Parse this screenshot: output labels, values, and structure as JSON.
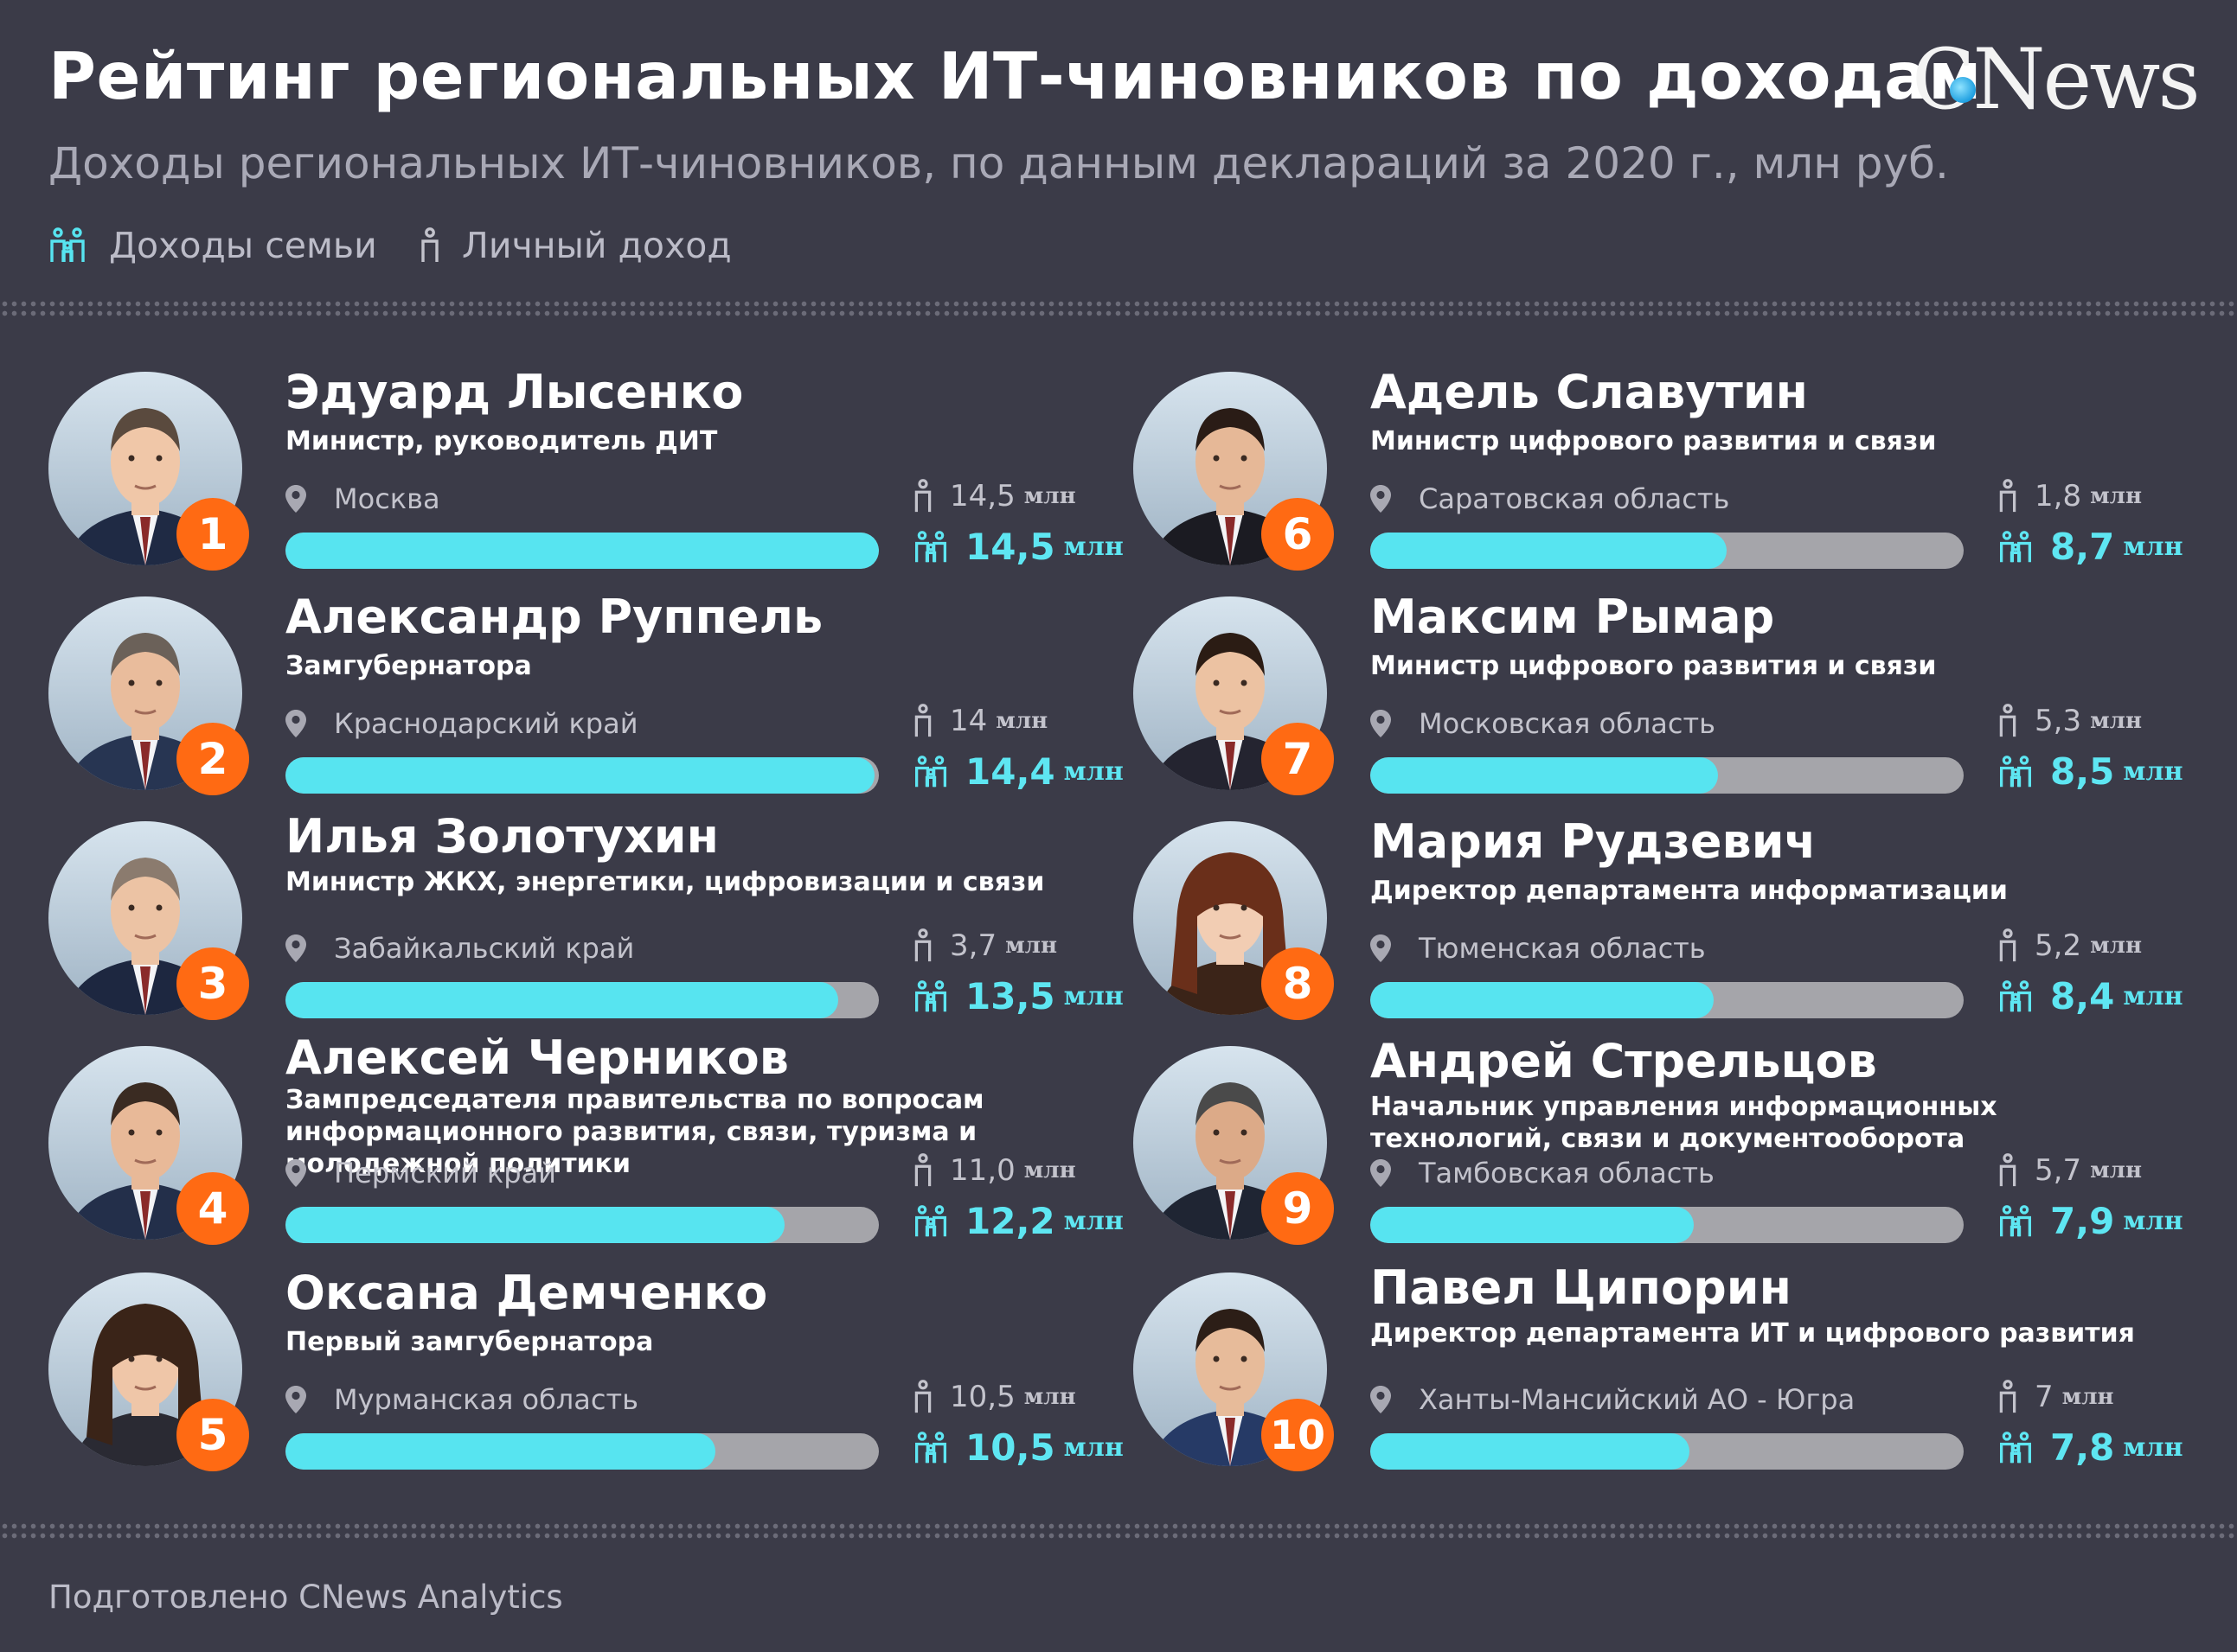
{
  "header": {
    "title": "Рейтинг региональных ИТ-чиновников по доходам",
    "logo_left": "C",
    "logo_right": "News",
    "subtitle": "Доходы региональных ИТ-чиновников, по данным деклараций за 2020 г., млн руб."
  },
  "legend": {
    "family": "Доходы семьи",
    "personal": "Личный доход"
  },
  "footer": "Подготовлено CNews Analytics",
  "colors": {
    "background": "#3b3b48",
    "bar_fill": "#57e4f0",
    "bar_track": "#a5a5aa",
    "badge": "#ff6a13",
    "family_text": "#5ee6f2"
  },
  "icons": {
    "family": "family-icon",
    "personal": "person-icon",
    "location": "location-pin-icon"
  },
  "chart_data": {
    "type": "bar",
    "series": [
      {
        "name": "Доходы семьи",
        "values": [
          14.5,
          14.4,
          13.5,
          12.2,
          10.5,
          8.7,
          8.5,
          8.4,
          7.9,
          7.8
        ]
      },
      {
        "name": "Личный доход",
        "values": [
          14.5,
          14,
          3.7,
          11.0,
          10.5,
          1.8,
          5.3,
          5.2,
          5.7,
          7
        ]
      }
    ],
    "bar_max": 14.5,
    "people": [
      {
        "rank": "1",
        "name": "Эдуард Лысенко",
        "position": "Министр, руководитель ДИТ",
        "region": "Москва",
        "personal": 14.5,
        "personal_label": "14,5",
        "family": 14.5,
        "family_label": "14,5",
        "unit": "млн"
      },
      {
        "rank": "2",
        "name": "Александр Руппель",
        "position": "Замгубернатора",
        "region": "Краснодарский край",
        "personal": 14,
        "personal_label": "14",
        "family": 14.4,
        "family_label": "14,4",
        "unit": "млн"
      },
      {
        "rank": "3",
        "name": "Илья Золотухин",
        "position": "Министр ЖКХ, энергетики, цифровизации и связи",
        "region": "Забайкальский край",
        "personal": 3.7,
        "personal_label": "3,7",
        "family": 13.5,
        "family_label": "13,5",
        "unit": "млн"
      },
      {
        "rank": "4",
        "name": "Алексей Черников",
        "position": "Зампредседателя правительства по вопросам информационного развития, связи, туризма и молодежной политики",
        "region": "Пермский край",
        "personal": 11.0,
        "personal_label": "11,0",
        "family": 12.2,
        "family_label": "12,2",
        "unit": "млн"
      },
      {
        "rank": "5",
        "name": "Оксана Демченко",
        "position": "Первый замгубернатора",
        "region": "Мурманская область",
        "personal": 10.5,
        "personal_label": "10,5",
        "family": 10.5,
        "family_label": "10,5",
        "unit": "млн"
      },
      {
        "rank": "6",
        "name": "Адель Славутин",
        "position": "Министр цифрового развития и связи",
        "region": "Саратовская область",
        "personal": 1.8,
        "personal_label": "1,8",
        "family": 8.7,
        "family_label": "8,7",
        "unit": "млн"
      },
      {
        "rank": "7",
        "name": "Максим Рымар",
        "position": "Министр цифрового развития и связи",
        "region": "Московская область",
        "personal": 5.3,
        "personal_label": "5,3",
        "family": 8.5,
        "family_label": "8,5",
        "unit": "млн"
      },
      {
        "rank": "8",
        "name": "Мария Рудзевич",
        "position": "Директор департамента информатизации",
        "region": "Тюменская область",
        "personal": 5.2,
        "personal_label": "5,2",
        "family": 8.4,
        "family_label": "8,4",
        "unit": "млн"
      },
      {
        "rank": "9",
        "name": "Андрей Стрельцов",
        "position": "Начальник управления информационных технологий, связи и документооборота",
        "region": "Тамбовская область",
        "personal": 5.7,
        "personal_label": "5,7",
        "family": 7.9,
        "family_label": "7,9",
        "unit": "млн"
      },
      {
        "rank": "10",
        "name": "Павел Ципорин",
        "position": "Директор департамента ИТ и цифрового развития",
        "region": "Ханты-Мансийский АО - Югра",
        "personal": 7,
        "personal_label": "7",
        "family": 7.8,
        "family_label": "7,8",
        "unit": "млн"
      }
    ]
  }
}
